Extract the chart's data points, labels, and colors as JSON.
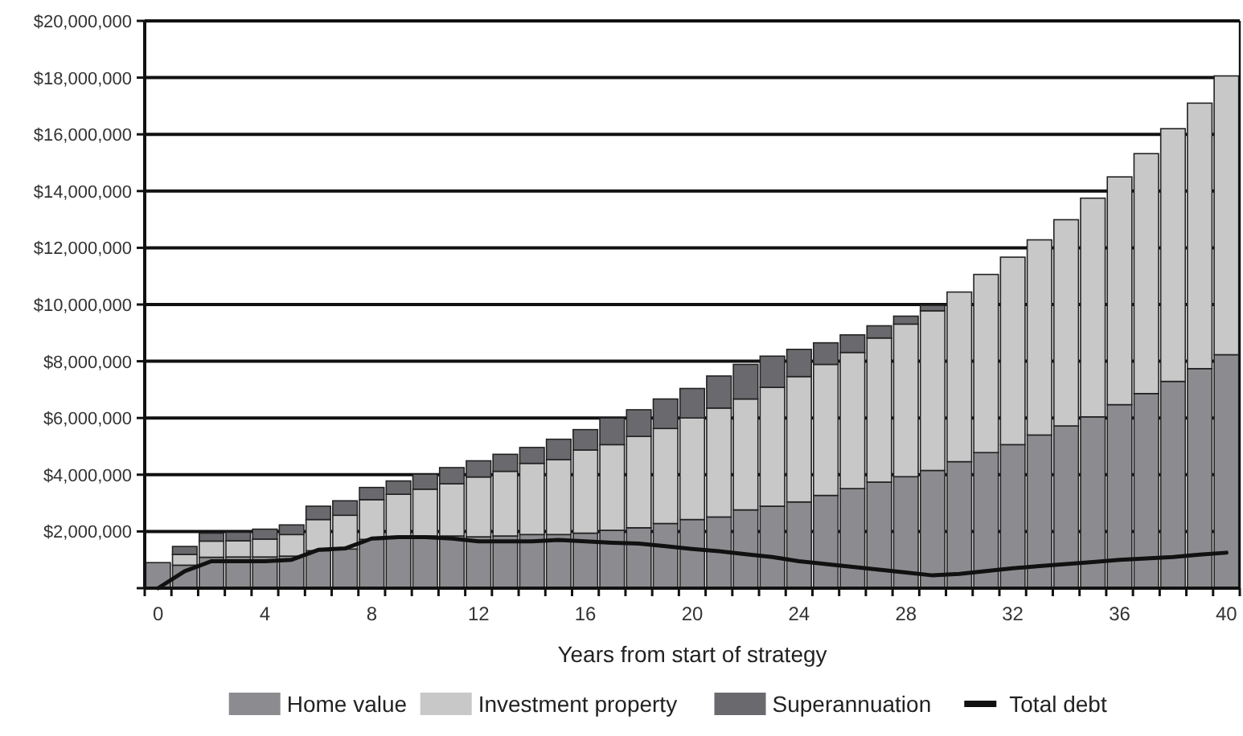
{
  "chart_data": {
    "type": "bar",
    "stacked": true,
    "xlabel": "Years from start of strategy",
    "categories": [
      "0",
      null,
      null,
      null,
      "4",
      null,
      null,
      null,
      "8",
      null,
      null,
      null,
      "12",
      null,
      null,
      null,
      "16",
      null,
      null,
      null,
      "20",
      null,
      null,
      null,
      "24",
      null,
      null,
      null,
      "28",
      null,
      null,
      null,
      "32",
      null,
      null,
      null,
      "36",
      null,
      null,
      null,
      "40"
    ],
    "ylim": [
      0,
      20000000
    ],
    "yticks": [
      {
        "value": 0,
        "label": null
      },
      {
        "value": 2000000,
        "label": "$2,000,000"
      },
      {
        "value": 4000000,
        "label": "$4,000,000"
      },
      {
        "value": 6000000,
        "label": "$6,000,000"
      },
      {
        "value": 8000000,
        "label": "$8,000,000"
      },
      {
        "value": 10000000,
        "label": "$10,000,000"
      },
      {
        "value": 12000000,
        "label": "$12,000,000"
      },
      {
        "value": 14000000,
        "label": "$14,000,000"
      },
      {
        "value": 16000000,
        "label": "$16,000,000"
      },
      {
        "value": 18000000,
        "label": "$18,000,000"
      },
      {
        "value": 20000000,
        "label": "$20,000,000"
      }
    ],
    "grid": "y",
    "legend": "bottom",
    "series": [
      {
        "name": "Home value",
        "color": "#8c8c90",
        "values": [
          900000,
          810000,
          1090000,
          1100000,
          1100000,
          1130000,
          1320000,
          1380000,
          1720000,
          1810000,
          1840000,
          1840000,
          1810000,
          1840000,
          1890000,
          1890000,
          1940000,
          2040000,
          2130000,
          2280000,
          2420000,
          2510000,
          2760000,
          2890000,
          3040000,
          3270000,
          3510000,
          3740000,
          3930000,
          4150000,
          4460000,
          4780000,
          5060000,
          5400000,
          5720000,
          6040000,
          6470000,
          6860000,
          7290000,
          7740000,
          8230000
        ]
      },
      {
        "name": "Investment property",
        "color": "#c8c8c8",
        "values": [
          0,
          380000,
          570000,
          570000,
          630000,
          760000,
          1100000,
          1190000,
          1400000,
          1500000,
          1650000,
          1840000,
          2110000,
          2280000,
          2510000,
          2640000,
          2930000,
          3020000,
          3220000,
          3350000,
          3580000,
          3840000,
          3910000,
          4190000,
          4420000,
          4620000,
          4800000,
          5080000,
          5380000,
          5630000,
          5980000,
          6280000,
          6610000,
          6880000,
          7270000,
          7710000,
          8030000,
          8460000,
          8910000,
          9360000,
          9830000
        ]
      },
      {
        "name": "Superannuation",
        "color": "#6a6a6e",
        "values": [
          0,
          280000,
          280000,
          300000,
          350000,
          340000,
          470000,
          510000,
          430000,
          470000,
          530000,
          570000,
          570000,
          600000,
          560000,
          720000,
          720000,
          940000,
          940000,
          1040000,
          1040000,
          1130000,
          1220000,
          1100000,
          960000,
          760000,
          620000,
          430000,
          280000,
          190000,
          0,
          0,
          0,
          0,
          0,
          0,
          0,
          0,
          0,
          0,
          0
        ]
      },
      {
        "name": "Total debt",
        "type": "line",
        "color": "#111111",
        "values": [
          0,
          600000,
          950000,
          950000,
          950000,
          1000000,
          1350000,
          1400000,
          1750000,
          1800000,
          1800000,
          1750000,
          1650000,
          1650000,
          1650000,
          1700000,
          1650000,
          1600000,
          1570000,
          1480000,
          1380000,
          1300000,
          1200000,
          1100000,
          950000,
          850000,
          750000,
          650000,
          550000,
          450000,
          500000,
          600000,
          700000,
          780000,
          850000,
          920000,
          1000000,
          1050000,
          1100000,
          1180000,
          1250000
        ]
      }
    ]
  }
}
